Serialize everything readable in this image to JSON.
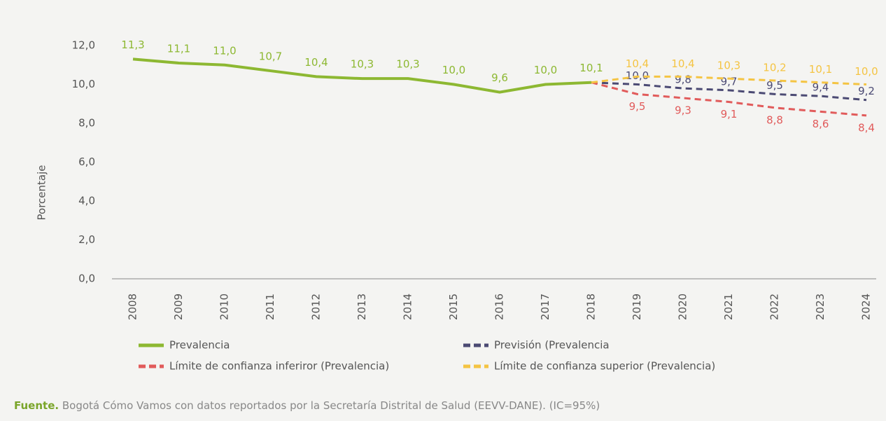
{
  "chart_data": {
    "type": "line",
    "ylabel": "Porcentaje",
    "categories": [
      "2008",
      "2009",
      "2010",
      "2011",
      "2012",
      "2013",
      "2014",
      "2015",
      "2016",
      "2017",
      "2018",
      "2019",
      "2020",
      "2021",
      "2022",
      "2023",
      "2024"
    ],
    "ylim": [
      0,
      12
    ],
    "yticks": [
      {
        "value": 0,
        "label": "0,0"
      },
      {
        "value": 2,
        "label": "2,0"
      },
      {
        "value": 4,
        "label": "4,0"
      },
      {
        "value": 6,
        "label": "6,0"
      },
      {
        "value": 8,
        "label": "8,0"
      },
      {
        "value": 10,
        "label": "10,0"
      },
      {
        "value": 12,
        "label": "12,0"
      }
    ],
    "series": [
      {
        "name": "Prevalencia",
        "color": "#8db832",
        "dashed": false,
        "values": [
          11.3,
          11.1,
          11.0,
          10.7,
          10.4,
          10.3,
          10.3,
          10.0,
          9.6,
          10.0,
          10.1,
          null,
          null,
          null,
          null,
          null,
          null
        ],
        "value_labels": [
          "11,3",
          "11,1",
          "11,0",
          "10,7",
          "10,4",
          "10,3",
          "10,3",
          "10,0",
          "9,6",
          "10,0",
          "10,1",
          null,
          null,
          null,
          null,
          null,
          null
        ]
      },
      {
        "name": "Previsión (Prevalencia",
        "color": "#4b4a73",
        "dashed": true,
        "values": [
          null,
          null,
          null,
          null,
          null,
          null,
          null,
          null,
          null,
          null,
          10.1,
          10.0,
          9.8,
          9.7,
          9.5,
          9.4,
          9.2
        ],
        "value_labels": [
          null,
          null,
          null,
          null,
          null,
          null,
          null,
          null,
          null,
          null,
          null,
          "10,0",
          "9,8",
          "9,7",
          "9,5",
          "9,4",
          "9,2"
        ]
      },
      {
        "name": "Límite de confianza inferiror (Prevalencia)",
        "color": "#e15b5b",
        "dashed": true,
        "values": [
          null,
          null,
          null,
          null,
          null,
          null,
          null,
          null,
          null,
          null,
          10.1,
          9.5,
          9.3,
          9.1,
          8.8,
          8.6,
          8.4
        ],
        "value_labels": [
          null,
          null,
          null,
          null,
          null,
          null,
          null,
          null,
          null,
          null,
          null,
          "9,5",
          "9,3",
          "9,1",
          "8,8",
          "8,6",
          "8,4"
        ]
      },
      {
        "name": "Límite de confianza superior (Prevalencia)",
        "color": "#f4c443",
        "dashed": true,
        "values": [
          null,
          null,
          null,
          null,
          null,
          null,
          null,
          null,
          null,
          null,
          10.1,
          10.4,
          10.4,
          10.3,
          10.2,
          10.1,
          10.0
        ],
        "value_labels": [
          null,
          null,
          null,
          null,
          null,
          null,
          null,
          null,
          null,
          null,
          null,
          "10,4",
          "10,4",
          "10,3",
          "10,2",
          "10,1",
          "10,0"
        ]
      }
    ],
    "source_label": "Fuente.",
    "source": " Bogotá Cómo Vamos con datos reportados por la Secretaría Distrital de Salud (EEVV-DANE). (IC=95%)"
  }
}
